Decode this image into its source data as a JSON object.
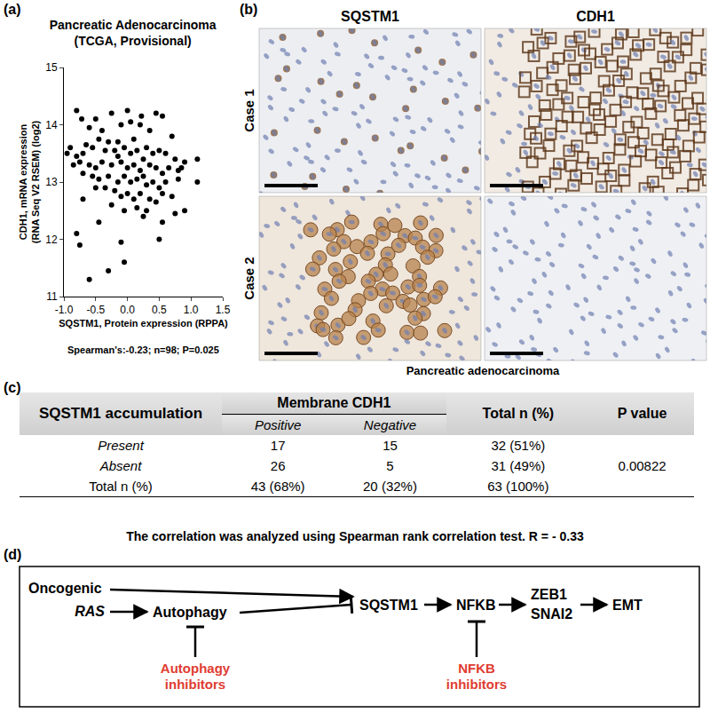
{
  "panel_labels": [
    "(a)",
    "(b)",
    "(c)",
    "(d)"
  ],
  "chart_data": {
    "type": "scatter",
    "title": "Pancreatic Adenocarcinoma (TCGA, Provisional)",
    "x_label": "SQSTM1, Protein expression (RPPA)",
    "y_label": "CDH1, mRNA expression (RNA Seq V2 RSEM) (log2)",
    "annotation": "Spearman's:-0.23; n=98; P=0.025",
    "x": [
      -0.8,
      -0.72,
      -0.5,
      -0.25,
      0.0,
      0.05,
      0.22,
      0.45,
      0.55,
      0.2,
      -0.1,
      -0.4,
      -0.6,
      0.35,
      0.7,
      -0.45,
      -0.3,
      -0.15,
      0.1,
      -0.9,
      -0.95,
      -0.8,
      -0.7,
      -0.65,
      -0.55,
      -0.35,
      -0.2,
      -0.05,
      0.05,
      0.15,
      0.3,
      0.4,
      0.5,
      0.6,
      0.75,
      0.9,
      1.1,
      -0.85,
      -0.75,
      -0.6,
      -0.5,
      -0.4,
      -0.25,
      -0.1,
      0.0,
      0.1,
      0.2,
      0.35,
      0.45,
      0.55,
      0.65,
      0.8,
      0.85,
      -0.7,
      -0.55,
      -0.45,
      -0.3,
      -0.15,
      -0.05,
      0.05,
      0.15,
      0.25,
      0.3,
      0.4,
      0.5,
      0.6,
      -0.7,
      -0.35,
      -0.2,
      -0.1,
      0.0,
      0.1,
      0.2,
      0.35,
      0.45,
      0.55,
      0.7,
      0.9,
      1.1,
      -0.25,
      -0.05,
      0.15,
      0.5,
      0.55,
      -0.8,
      -0.75,
      -0.1,
      -0.05,
      -0.3,
      -0.6,
      0.25,
      -0.45,
      0.75,
      0.3,
      -0.5,
      0.8,
      -0.15,
      0.25
    ],
    "y": [
      14.25,
      14.1,
      14.1,
      14.2,
      14.25,
      14.05,
      14.15,
      14.2,
      14.15,
      14.0,
      14.0,
      13.9,
      13.95,
      13.9,
      13.8,
      13.75,
      13.7,
      13.7,
      13.75,
      13.6,
      13.5,
      13.45,
      13.5,
      13.65,
      13.6,
      13.55,
      13.55,
      13.6,
      13.5,
      13.55,
      13.6,
      13.5,
      13.55,
      13.5,
      13.4,
      13.35,
      13.4,
      13.3,
      13.35,
      13.3,
      13.25,
      13.35,
      13.3,
      13.35,
      13.25,
      13.3,
      13.2,
      13.3,
      13.25,
      13.15,
      13.25,
      13.2,
      13.25,
      13.15,
      13.1,
      13.05,
      13.1,
      13.0,
      13.1,
      13.0,
      13.05,
      13.1,
      12.95,
      13.0,
      12.9,
      13.0,
      12.7,
      12.9,
      12.85,
      12.75,
      12.8,
      12.7,
      12.8,
      12.7,
      12.65,
      12.8,
      12.75,
      12.5,
      13.0,
      12.6,
      12.5,
      12.55,
      12.0,
      12.3,
      12.1,
      11.9,
      11.95,
      11.6,
      11.45,
      11.3,
      12.4,
      12.3,
      12.45,
      12.5,
      12.9,
      13.05,
      13.45,
      13.4
    ],
    "color": "#000000",
    "marker": "circle",
    "xlim": [
      -1,
      1.5
    ],
    "xticks": [
      {
        "value": -1,
        "label": "-1.0"
      },
      {
        "value": -0.5,
        "label": "-0.5"
      },
      {
        "value": 0,
        "label": "0.0"
      },
      {
        "value": 0.5,
        "label": "0.5"
      },
      {
        "value": 1,
        "label": "1.0"
      },
      {
        "value": 1.5,
        "label": "1.5"
      }
    ],
    "ylim": [
      11,
      15
    ],
    "yticks": [
      11,
      12,
      13,
      14,
      15
    ],
    "grid": false
  },
  "images": {
    "columns": [
      "SQSTM1",
      "CDH1"
    ],
    "rows": [
      "Case 1",
      "Case 2"
    ],
    "caption": "Pancreatic adenocarcinoma"
  },
  "table": {
    "row_header": "SQSTM1 accumulation",
    "group_header": "Membrane CDH1",
    "columns": [
      "Positive",
      "Negative"
    ],
    "total_header": "Total n (%)",
    "p_header": "P value",
    "rows": [
      {
        "label": "Present",
        "cells": [
          "17",
          "15",
          "32 (51%)"
        ]
      },
      {
        "label": "Absent",
        "cells": [
          "26",
          "5",
          "31 (49%)"
        ]
      },
      {
        "label": "Total n (%)",
        "cells": [
          "43 (68%)",
          "20 (32%)",
          "63 (100%)"
        ]
      }
    ],
    "p_value": "0.00822",
    "footnote": "The correlation was analyzed using Spearman rank correlation test. R = - 0.33"
  },
  "diagram": {
    "nodes": {
      "ras": "Oncogenic RAS",
      "autophagy": "Autophagy",
      "sqstm1": "SQSTM1",
      "nfkb": "NFKB",
      "zeb1": "ZEB1",
      "snai2": "SNAI2",
      "emt": "EMT",
      "autophagy_inhibitors": "Autophagy inhibitors",
      "nfkb_inhibitors": "NFKB inhibitors"
    },
    "inhibitor_color": "#e03c31"
  }
}
